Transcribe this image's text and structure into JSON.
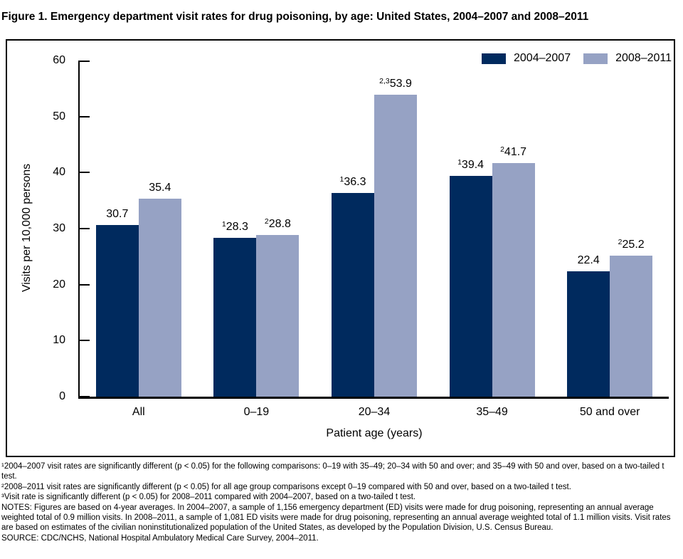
{
  "figure_title": "Figure 1. Emergency department visit rates for drug poisoning, by age: United States, 2004–2007 and 2008–2011",
  "chart_data": {
    "type": "bar",
    "title": "Figure 1. Emergency department visit rates for drug poisoning, by age: United States, 2004–2007 and 2008–2011",
    "categories": [
      "All",
      "0–19",
      "20–34",
      "35–49",
      "50 and over"
    ],
    "series": [
      {
        "name": "2004–2007",
        "color": "#002A5E",
        "values": [
          30.7,
          28.3,
          36.3,
          39.4,
          22.4
        ],
        "value_superscripts": [
          "",
          "1",
          "1",
          "1",
          ""
        ]
      },
      {
        "name": "2008–2011",
        "color": "#96A2C4",
        "values": [
          35.4,
          28.8,
          53.9,
          41.7,
          25.2
        ],
        "value_superscripts": [
          "",
          "2",
          "2,3",
          "2",
          "2"
        ]
      }
    ],
    "xlabel": "Patient age (years)",
    "ylabel": "Visits per 10,000 persons",
    "ylim": [
      0,
      60
    ],
    "yticks": [
      0,
      10,
      20,
      30,
      40,
      50,
      60
    ],
    "grid": false,
    "legend_position": "top-right",
    "axis_color": "#000000"
  },
  "footnotes": [
    "¹2004–2007 visit rates are significantly different (p < 0.05) for the following comparisons: 0–19 with 35–49; 20–34 with 50 and over; and 35–49 with 50 and over, based on a two-tailed t test.",
    "²2008–2011 visit rates are significantly different (p < 0.05) for all age group comparisons except 0–19 compared with 50 and over, based on a two-tailed t test.",
    "³Visit rate is significantly different (p < 0.05) for 2008–2011 compared with 2004–2007, based on a two-tailed t test.",
    "NOTES: Figures are based on 4-year averages. In 2004–2007, a sample of 1,156 emergency department (ED) visits were made for drug poisoning, representing an annual average weighted total of 0.9 million visits. In 2008–2011, a sample of 1,081 ED visits were made for drug poisoning, representing an annual average weighted total of 1.1 million visits. Visit rates are based on estimates of the civilian noninstitutionalized population of the United States, as developed by the Population Division, U.S. Census Bureau.",
    "SOURCE: CDC/NCHS, National Hospital Ambulatory Medical Care Survey, 2004–2011."
  ]
}
